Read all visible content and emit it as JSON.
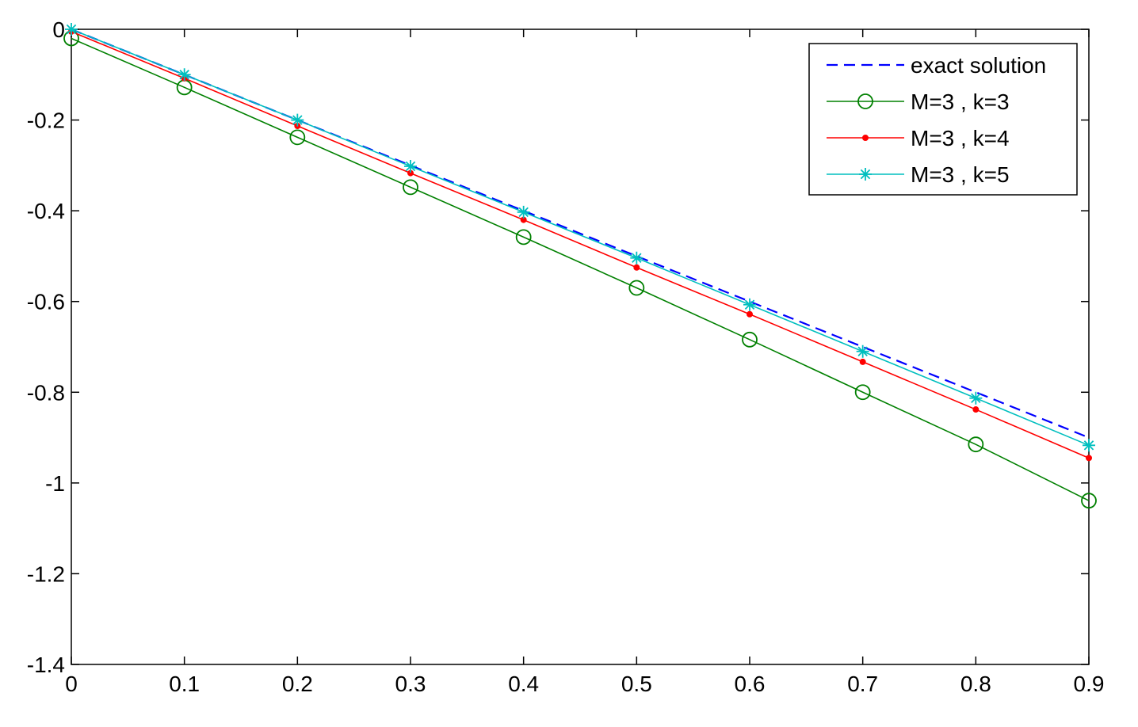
{
  "chart_data": {
    "type": "line",
    "title": "",
    "xlabel": "",
    "ylabel": "",
    "xlim": [
      0,
      0.9
    ],
    "ylim": [
      -1.4,
      0
    ],
    "x_ticks": [
      0,
      0.1,
      0.2,
      0.3,
      0.4,
      0.5,
      0.6,
      0.7,
      0.8,
      0.9
    ],
    "x_tick_labels": [
      "0",
      "0.1",
      "0.2",
      "0.3",
      "0.4",
      "0.5",
      "0.6",
      "0.7",
      "0.8",
      "0.9"
    ],
    "y_ticks": [
      0,
      -0.2,
      -0.4,
      -0.6,
      -0.8,
      -1,
      -1.2,
      -1.4
    ],
    "y_tick_labels": [
      "0",
      "-0.2",
      "-0.4",
      "-0.6",
      "-0.8",
      "-1",
      "-1.2",
      "-1.4"
    ],
    "grid": false,
    "legend_position": "top-right",
    "x": [
      0,
      0.1,
      0.2,
      0.3,
      0.4,
      0.5,
      0.6,
      0.7,
      0.8,
      0.9
    ],
    "series": [
      {
        "name": "exact solution",
        "color": "#0000ff",
        "style": "dashed",
        "marker": "none",
        "values": [
          0,
          -0.1,
          -0.2,
          -0.3,
          -0.4,
          -0.5,
          -0.6,
          -0.7,
          -0.8,
          -0.9
        ]
      },
      {
        "name": "M=3 , k=3",
        "color": "#008000",
        "style": "solid",
        "marker": "circle",
        "values": [
          -0.02,
          -0.128,
          -0.238,
          -0.348,
          -0.458,
          -0.57,
          -0.684,
          -0.8,
          -0.915,
          -1.039
        ]
      },
      {
        "name": "M=3 , k=4",
        "color": "#ff0000",
        "style": "solid",
        "marker": "dot",
        "values": [
          -0.005,
          -0.108,
          -0.213,
          -0.317,
          -0.42,
          -0.525,
          -0.628,
          -0.733,
          -0.838,
          -0.945
        ]
      },
      {
        "name": "M=3 , k=5",
        "color": "#00bfbf",
        "style": "solid",
        "marker": "star",
        "values": [
          0,
          -0.1,
          -0.2,
          -0.302,
          -0.403,
          -0.504,
          -0.607,
          -0.71,
          -0.813,
          -0.917
        ]
      }
    ]
  }
}
